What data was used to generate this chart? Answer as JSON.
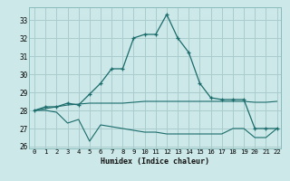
{
  "xlabel": "Humidex (Indice chaleur)",
  "bg_color": "#cce8e8",
  "grid_color": "#aacccc",
  "line_color": "#1a6b6b",
  "xlim": [
    -0.5,
    22.4
  ],
  "ylim": [
    25.9,
    33.7
  ],
  "yticks": [
    26,
    27,
    28,
    29,
    30,
    31,
    32,
    33
  ],
  "xticks": [
    0,
    1,
    2,
    3,
    4,
    5,
    6,
    7,
    8,
    9,
    10,
    11,
    12,
    13,
    14,
    15,
    16,
    17,
    18,
    19,
    20,
    21,
    22
  ],
  "line1_x": [
    0,
    1,
    2,
    3,
    4,
    5,
    6,
    7,
    8,
    9,
    10,
    11,
    12,
    13,
    14,
    15,
    16,
    17,
    18,
    19,
    20,
    21,
    22
  ],
  "line1_y": [
    28.0,
    28.2,
    28.2,
    28.4,
    28.3,
    28.9,
    29.5,
    30.3,
    30.3,
    32.0,
    32.2,
    32.2,
    33.3,
    32.0,
    31.2,
    29.5,
    28.7,
    28.6,
    28.6,
    28.6,
    27.0,
    27.0,
    27.0
  ],
  "line2_x": [
    0,
    1,
    2,
    3,
    4,
    5,
    6,
    7,
    8,
    9,
    10,
    11,
    12,
    13,
    14,
    15,
    16,
    17,
    18,
    19,
    20,
    21,
    22
  ],
  "line2_y": [
    28.0,
    28.1,
    28.2,
    28.3,
    28.35,
    28.4,
    28.4,
    28.4,
    28.4,
    28.45,
    28.5,
    28.5,
    28.5,
    28.5,
    28.5,
    28.5,
    28.5,
    28.5,
    28.5,
    28.5,
    28.45,
    28.45,
    28.5
  ],
  "line3_x": [
    0,
    1,
    2,
    3,
    4,
    5,
    6,
    7,
    8,
    9,
    10,
    11,
    12,
    13,
    14,
    15,
    16,
    17,
    18,
    19,
    20,
    21,
    22
  ],
  "line3_y": [
    28.0,
    28.0,
    27.9,
    27.3,
    27.5,
    26.3,
    27.2,
    27.1,
    27.0,
    26.9,
    26.8,
    26.8,
    26.7,
    26.7,
    26.7,
    26.7,
    26.7,
    26.7,
    27.0,
    27.0,
    26.5,
    26.5,
    27.0
  ]
}
